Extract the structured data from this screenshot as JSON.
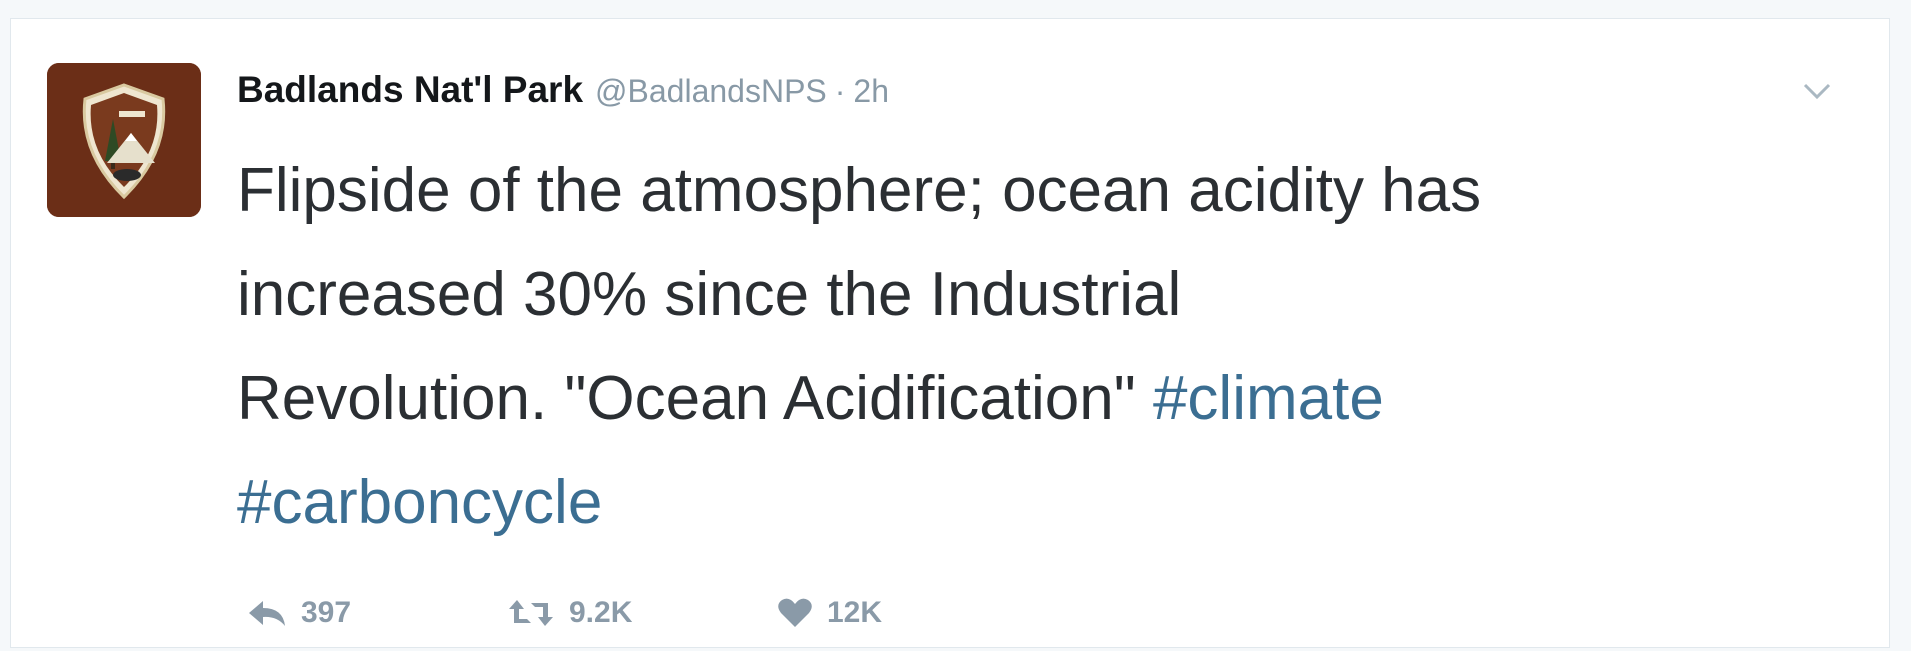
{
  "tweet": {
    "display_name": "Badlands Nat'l Park",
    "handle": "@BadlandsNPS",
    "separator": "·",
    "time": "2h",
    "text": {
      "line1": "Flipside of the atmosphere; ocean acidity has",
      "line2": "increased 30% since the Industrial",
      "line3_text": "Revolution. \"Ocean Acidification\" ",
      "hashtag1": "#climate",
      "hashtag2": "#carboncycle"
    },
    "actions": {
      "replies": "397",
      "retweets": "9.2K",
      "likes": "12K"
    }
  },
  "colors": {
    "hashtag": "#3b6e92",
    "avatar_bg": "#6b2e17",
    "muted": "#8899a6"
  },
  "icons": {
    "avatar": "nps-arrowhead-logo",
    "caret": "chevron-down-icon",
    "reply": "reply-icon",
    "retweet": "retweet-icon",
    "like": "heart-icon"
  }
}
